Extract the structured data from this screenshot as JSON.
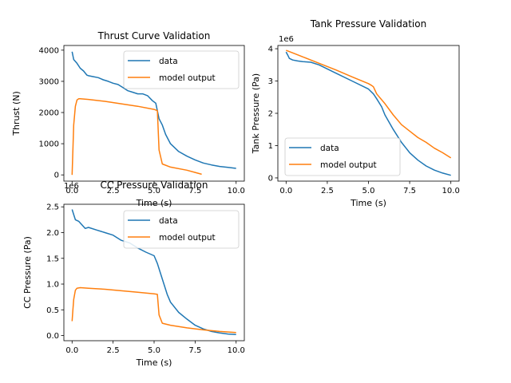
{
  "colors": {
    "data": "#1f77b4",
    "model": "#ff7f0e"
  },
  "chart_data": [
    {
      "id": "thrust",
      "type": "line",
      "title": "Thrust Curve Validation",
      "xlabel": "Time (s)",
      "ylabel": "Thrust (N)",
      "xlim": [
        -0.5,
        10.5
      ],
      "ylim": [
        -200,
        4150
      ],
      "x_ticks": [
        0,
        2.5,
        5,
        7.5,
        10
      ],
      "x_tick_labels": [
        "0.0",
        "2.5",
        "5.0",
        "7.5",
        "10.0"
      ],
      "y_ticks": [
        0,
        1000,
        2000,
        3000,
        4000
      ],
      "y_tick_labels": [
        "0",
        "1000",
        "2000",
        "3000",
        "4000"
      ],
      "exponent_label": "",
      "legend_position": "top-right",
      "series": [
        {
          "name": "data",
          "color": "#1f77b4",
          "x": [
            0,
            0.1,
            0.3,
            0.5,
            0.7,
            0.9,
            1.0,
            1.3,
            1.6,
            1.9,
            2.2,
            2.5,
            2.8,
            3.1,
            3.4,
            3.7,
            4.0,
            4.3,
            4.6,
            4.9,
            5.1,
            5.3,
            5.5,
            5.7,
            6.0,
            6.5,
            7.0,
            7.5,
            8.0,
            8.5,
            9.0,
            9.5,
            10.0
          ],
          "y": [
            3950,
            3700,
            3580,
            3420,
            3330,
            3200,
            3180,
            3150,
            3120,
            3050,
            3000,
            2940,
            2900,
            2800,
            2700,
            2650,
            2600,
            2600,
            2540,
            2380,
            2300,
            1800,
            1600,
            1300,
            1000,
            750,
            600,
            480,
            380,
            320,
            270,
            240,
            210
          ]
        },
        {
          "name": "model output",
          "color": "#ff7f0e",
          "x": [
            0,
            0.05,
            0.1,
            0.2,
            0.3,
            0.4,
            0.5,
            1.0,
            2.0,
            3.0,
            4.0,
            5.0,
            5.2,
            5.3,
            5.5,
            6.0,
            7.0,
            7.5,
            7.9
          ],
          "y": [
            0,
            800,
            1600,
            2200,
            2400,
            2440,
            2440,
            2420,
            2360,
            2280,
            2200,
            2100,
            2060,
            800,
            350,
            250,
            150,
            80,
            20
          ]
        }
      ]
    },
    {
      "id": "tank",
      "type": "line",
      "title": "Tank Pressure Validation",
      "xlabel": "Time (s)",
      "ylabel": "Tank Pressure (Pa)",
      "xlim": [
        -0.5,
        10.5
      ],
      "ylim": [
        -100000,
        4100000
      ],
      "x_ticks": [
        0,
        2.5,
        5,
        7.5,
        10
      ],
      "x_tick_labels": [
        "0.0",
        "2.5",
        "5.0",
        "7.5",
        "10.0"
      ],
      "y_ticks": [
        0,
        1000000,
        2000000,
        3000000,
        4000000
      ],
      "y_tick_labels": [
        "0",
        "1",
        "2",
        "3",
        "4"
      ],
      "exponent_label": "1e6",
      "legend_position": "bottom-left",
      "series": [
        {
          "name": "data",
          "color": "#1f77b4",
          "x": [
            0,
            0.1,
            0.2,
            0.4,
            0.7,
            1.0,
            1.5,
            2.0,
            3.0,
            4.0,
            5.0,
            5.3,
            5.5,
            5.8,
            6.0,
            6.5,
            7.0,
            7.5,
            8.0,
            8.5,
            9.0,
            9.5,
            10.0
          ],
          "y": [
            3900000,
            3800000,
            3700000,
            3650000,
            3620000,
            3600000,
            3580000,
            3500000,
            3250000,
            3000000,
            2750000,
            2600000,
            2450000,
            2200000,
            1950000,
            1500000,
            1100000,
            780000,
            550000,
            370000,
            240000,
            150000,
            80000
          ]
        },
        {
          "name": "model output",
          "color": "#ff7f0e",
          "x": [
            0,
            0.5,
            1.0,
            2.0,
            3.0,
            4.0,
            5.0,
            5.2,
            5.3,
            5.5,
            6.0,
            6.5,
            7.0,
            7.5,
            8.0,
            8.5,
            9.0,
            9.5,
            10.0
          ],
          "y": [
            3950000,
            3850000,
            3750000,
            3550000,
            3350000,
            3130000,
            2920000,
            2860000,
            2820000,
            2600000,
            2300000,
            1950000,
            1650000,
            1450000,
            1250000,
            1100000,
            920000,
            780000,
            620000
          ]
        }
      ]
    },
    {
      "id": "cc",
      "type": "line",
      "title": "CC Pressure Validation",
      "xlabel": "Time (s)",
      "ylabel": "CC Pressure (Pa)",
      "xlim": [
        -0.5,
        10.5
      ],
      "ylim": [
        -100000,
        2550000
      ],
      "x_ticks": [
        0,
        2.5,
        5,
        7.5,
        10
      ],
      "x_tick_labels": [
        "0.0",
        "2.5",
        "5.0",
        "7.5",
        "10.0"
      ],
      "y_ticks": [
        0,
        500000,
        1000000,
        1500000,
        2000000,
        2500000
      ],
      "y_tick_labels": [
        "0.0",
        "0.5",
        "1.0",
        "1.5",
        "2.0",
        "2.5"
      ],
      "exponent_label": "1e6",
      "legend_position": "top-right",
      "series": [
        {
          "name": "data",
          "color": "#1f77b4",
          "x": [
            0,
            0.1,
            0.2,
            0.4,
            0.6,
            0.8,
            1.0,
            1.5,
            2.0,
            2.5,
            3.0,
            3.5,
            4.0,
            4.5,
            5.0,
            5.2,
            5.4,
            5.6,
            5.8,
            6.0,
            6.5,
            7.0,
            7.5,
            8.0,
            8.5,
            9.0,
            9.5,
            10.0
          ],
          "y": [
            2450000,
            2350000,
            2250000,
            2220000,
            2150000,
            2080000,
            2100000,
            2050000,
            2000000,
            1950000,
            1850000,
            1800000,
            1700000,
            1620000,
            1550000,
            1400000,
            1200000,
            1000000,
            800000,
            650000,
            450000,
            320000,
            200000,
            130000,
            80000,
            50000,
            30000,
            20000
          ]
        },
        {
          "name": "model output",
          "color": "#ff7f0e",
          "x": [
            0,
            0.05,
            0.1,
            0.2,
            0.3,
            0.5,
            1.0,
            2.0,
            3.0,
            4.0,
            5.0,
            5.2,
            5.3,
            5.5,
            6.0,
            7.0,
            8.0,
            9.0,
            10.0
          ],
          "y": [
            280000,
            500000,
            700000,
            880000,
            920000,
            930000,
            920000,
            900000,
            870000,
            840000,
            810000,
            800000,
            400000,
            240000,
            200000,
            150000,
            110000,
            80000,
            60000
          ]
        }
      ]
    }
  ]
}
